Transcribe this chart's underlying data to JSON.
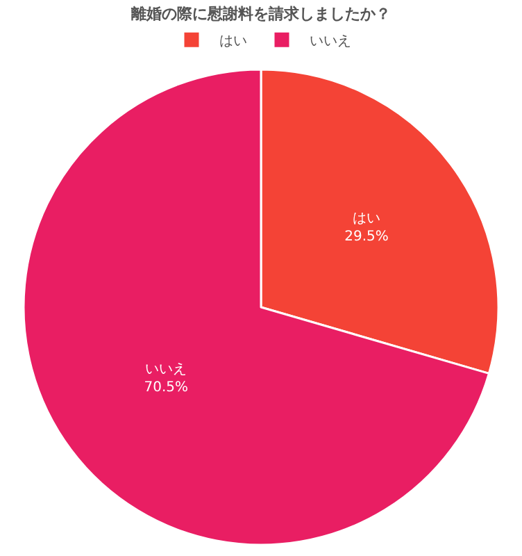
{
  "chart_data": {
    "type": "pie",
    "title": "離婚の際に慰謝料を請求しましたか？",
    "categories": [
      "はい",
      "いいえ"
    ],
    "values": [
      29.5,
      70.5
    ],
    "colors": [
      "#f44336",
      "#e91e63"
    ],
    "value_labels": [
      "29.5%",
      "70.5%"
    ],
    "legend": "top"
  }
}
